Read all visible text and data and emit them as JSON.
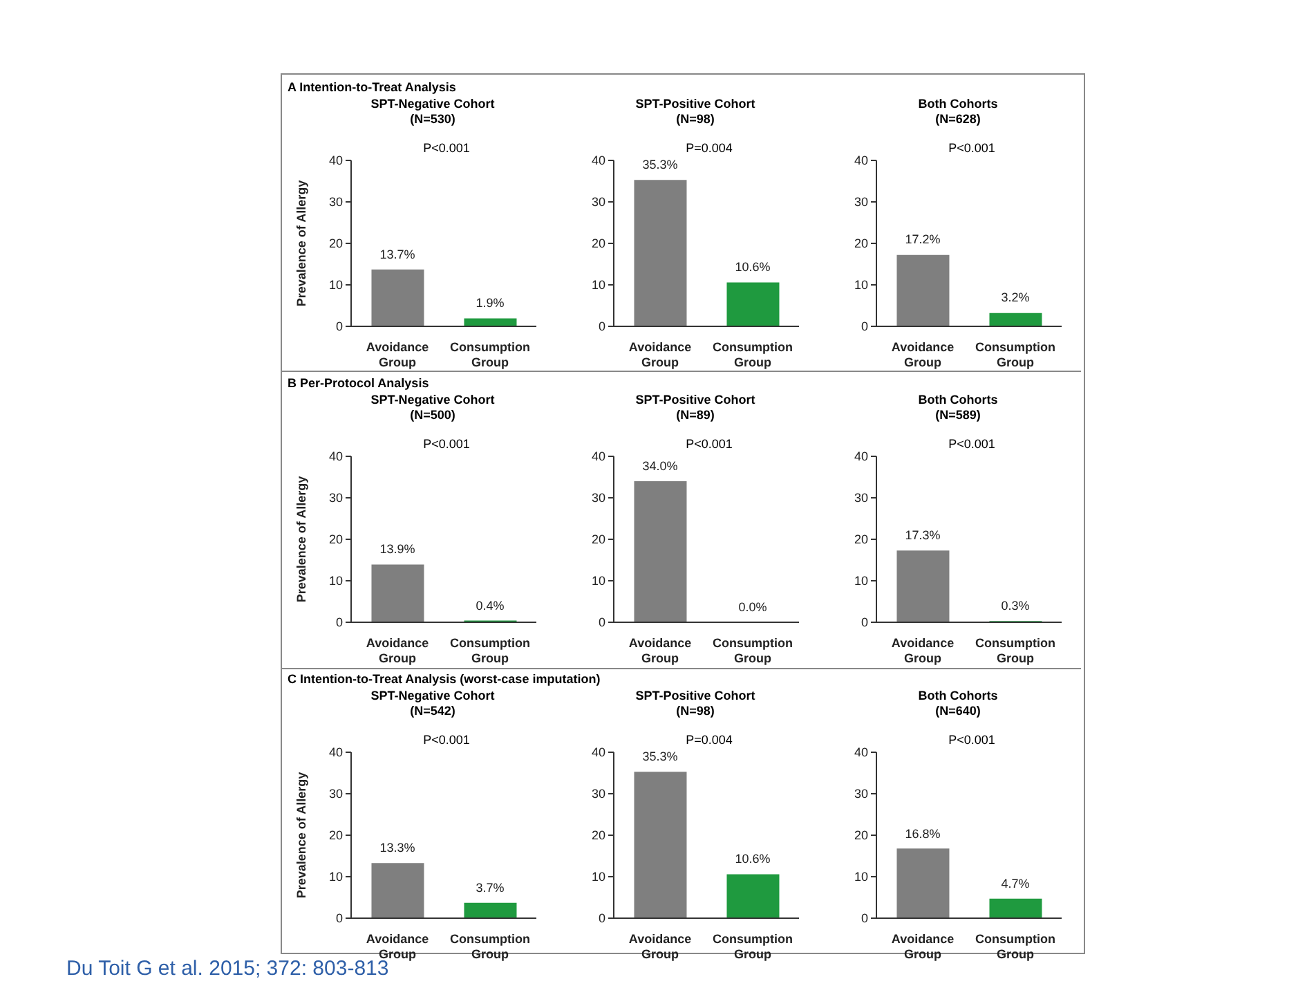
{
  "chart_data": [
    {
      "type": "bar",
      "title": "A  Intention-to-Treat Analysis",
      "subtitle": "SPT-Negative Cohort\n(N=530)",
      "ylabel": "Prevalence of Allergy",
      "annotations": [
        "P<0.001"
      ],
      "categories": [
        "Avoidance Group",
        "Consumption Group"
      ],
      "values": [
        13.7,
        1.9
      ],
      "value_labels": [
        "13.7%",
        "1.9%"
      ],
      "colors": [
        "#7f7f7f",
        "#1f9a3f"
      ],
      "ylim": [
        0,
        40
      ],
      "yticks": [
        0,
        10,
        20,
        30,
        40
      ]
    },
    {
      "type": "bar",
      "subtitle": "SPT-Positive Cohort\n(N=98)",
      "annotations": [
        "P=0.004"
      ],
      "categories": [
        "Avoidance Group",
        "Consumption Group"
      ],
      "values": [
        35.3,
        10.6
      ],
      "value_labels": [
        "35.3%",
        "10.6%"
      ],
      "colors": [
        "#7f7f7f",
        "#1f9a3f"
      ],
      "ylim": [
        0,
        40
      ],
      "yticks": [
        0,
        10,
        20,
        30,
        40
      ]
    },
    {
      "type": "bar",
      "subtitle": "Both Cohorts\n(N=628)",
      "annotations": [
        "P<0.001"
      ],
      "categories": [
        "Avoidance Group",
        "Consumption Group"
      ],
      "values": [
        17.2,
        3.2
      ],
      "value_labels": [
        "17.2%",
        "3.2%"
      ],
      "colors": [
        "#7f7f7f",
        "#1f9a3f"
      ],
      "ylim": [
        0,
        40
      ],
      "yticks": [
        0,
        10,
        20,
        30,
        40
      ]
    },
    {
      "type": "bar",
      "title": "B  Per-Protocol Analysis",
      "subtitle": "SPT-Negative Cohort\n(N=500)",
      "ylabel": "Prevalence of Allergy",
      "annotations": [
        "P<0.001"
      ],
      "categories": [
        "Avoidance Group",
        "Consumption Group"
      ],
      "values": [
        13.9,
        0.4
      ],
      "value_labels": [
        "13.9%",
        "0.4%"
      ],
      "colors": [
        "#7f7f7f",
        "#1f9a3f"
      ],
      "ylim": [
        0,
        40
      ],
      "yticks": [
        0,
        10,
        20,
        30,
        40
      ]
    },
    {
      "type": "bar",
      "subtitle": "SPT-Positive Cohort\n(N=89)",
      "annotations": [
        "P<0.001"
      ],
      "categories": [
        "Avoidance Group",
        "Consumption Group"
      ],
      "values": [
        34.0,
        0.0
      ],
      "value_labels": [
        "34.0%",
        "0.0%"
      ],
      "colors": [
        "#7f7f7f",
        "#1f9a3f"
      ],
      "ylim": [
        0,
        40
      ],
      "yticks": [
        0,
        10,
        20,
        30,
        40
      ]
    },
    {
      "type": "bar",
      "subtitle": "Both Cohorts\n(N=589)",
      "annotations": [
        "P<0.001"
      ],
      "categories": [
        "Avoidance Group",
        "Consumption Group"
      ],
      "values": [
        17.3,
        0.3
      ],
      "value_labels": [
        "17.3%",
        "0.3%"
      ],
      "colors": [
        "#7f7f7f",
        "#1f9a3f"
      ],
      "ylim": [
        0,
        40
      ],
      "yticks": [
        0,
        10,
        20,
        30,
        40
      ]
    },
    {
      "type": "bar",
      "title": "C  Intention-to-Treat Analysis (worst-case imputation)",
      "subtitle": "SPT-Negative Cohort\n(N=542)",
      "ylabel": "Prevalence of Allergy",
      "annotations": [
        "P<0.001"
      ],
      "categories": [
        "Avoidance Group",
        "Consumption Group"
      ],
      "values": [
        13.3,
        3.7
      ],
      "value_labels": [
        "13.3%",
        "3.7%"
      ],
      "colors": [
        "#7f7f7f",
        "#1f9a3f"
      ],
      "ylim": [
        0,
        40
      ],
      "yticks": [
        0,
        10,
        20,
        30,
        40
      ]
    },
    {
      "type": "bar",
      "subtitle": "SPT-Positive Cohort\n(N=98)",
      "annotations": [
        "P=0.004"
      ],
      "categories": [
        "Avoidance Group",
        "Consumption Group"
      ],
      "values": [
        35.3,
        10.6
      ],
      "value_labels": [
        "35.3%",
        "10.6%"
      ],
      "colors": [
        "#7f7f7f",
        "#1f9a3f"
      ],
      "ylim": [
        0,
        40
      ],
      "yticks": [
        0,
        10,
        20,
        30,
        40
      ]
    },
    {
      "type": "bar",
      "subtitle": "Both Cohorts\n(N=640)",
      "annotations": [
        "P<0.001"
      ],
      "categories": [
        "Avoidance Group",
        "Consumption Group"
      ],
      "values": [
        16.8,
        4.7
      ],
      "value_labels": [
        "16.8%",
        "4.7%"
      ],
      "colors": [
        "#7f7f7f",
        "#1f9a3f"
      ],
      "ylim": [
        0,
        40
      ],
      "yticks": [
        0,
        10,
        20,
        30,
        40
      ]
    },
    {
      "type": "other",
      "annotations": [
        "Du Toit G et al. 2015; 372: 803-813"
      ]
    }
  ]
}
